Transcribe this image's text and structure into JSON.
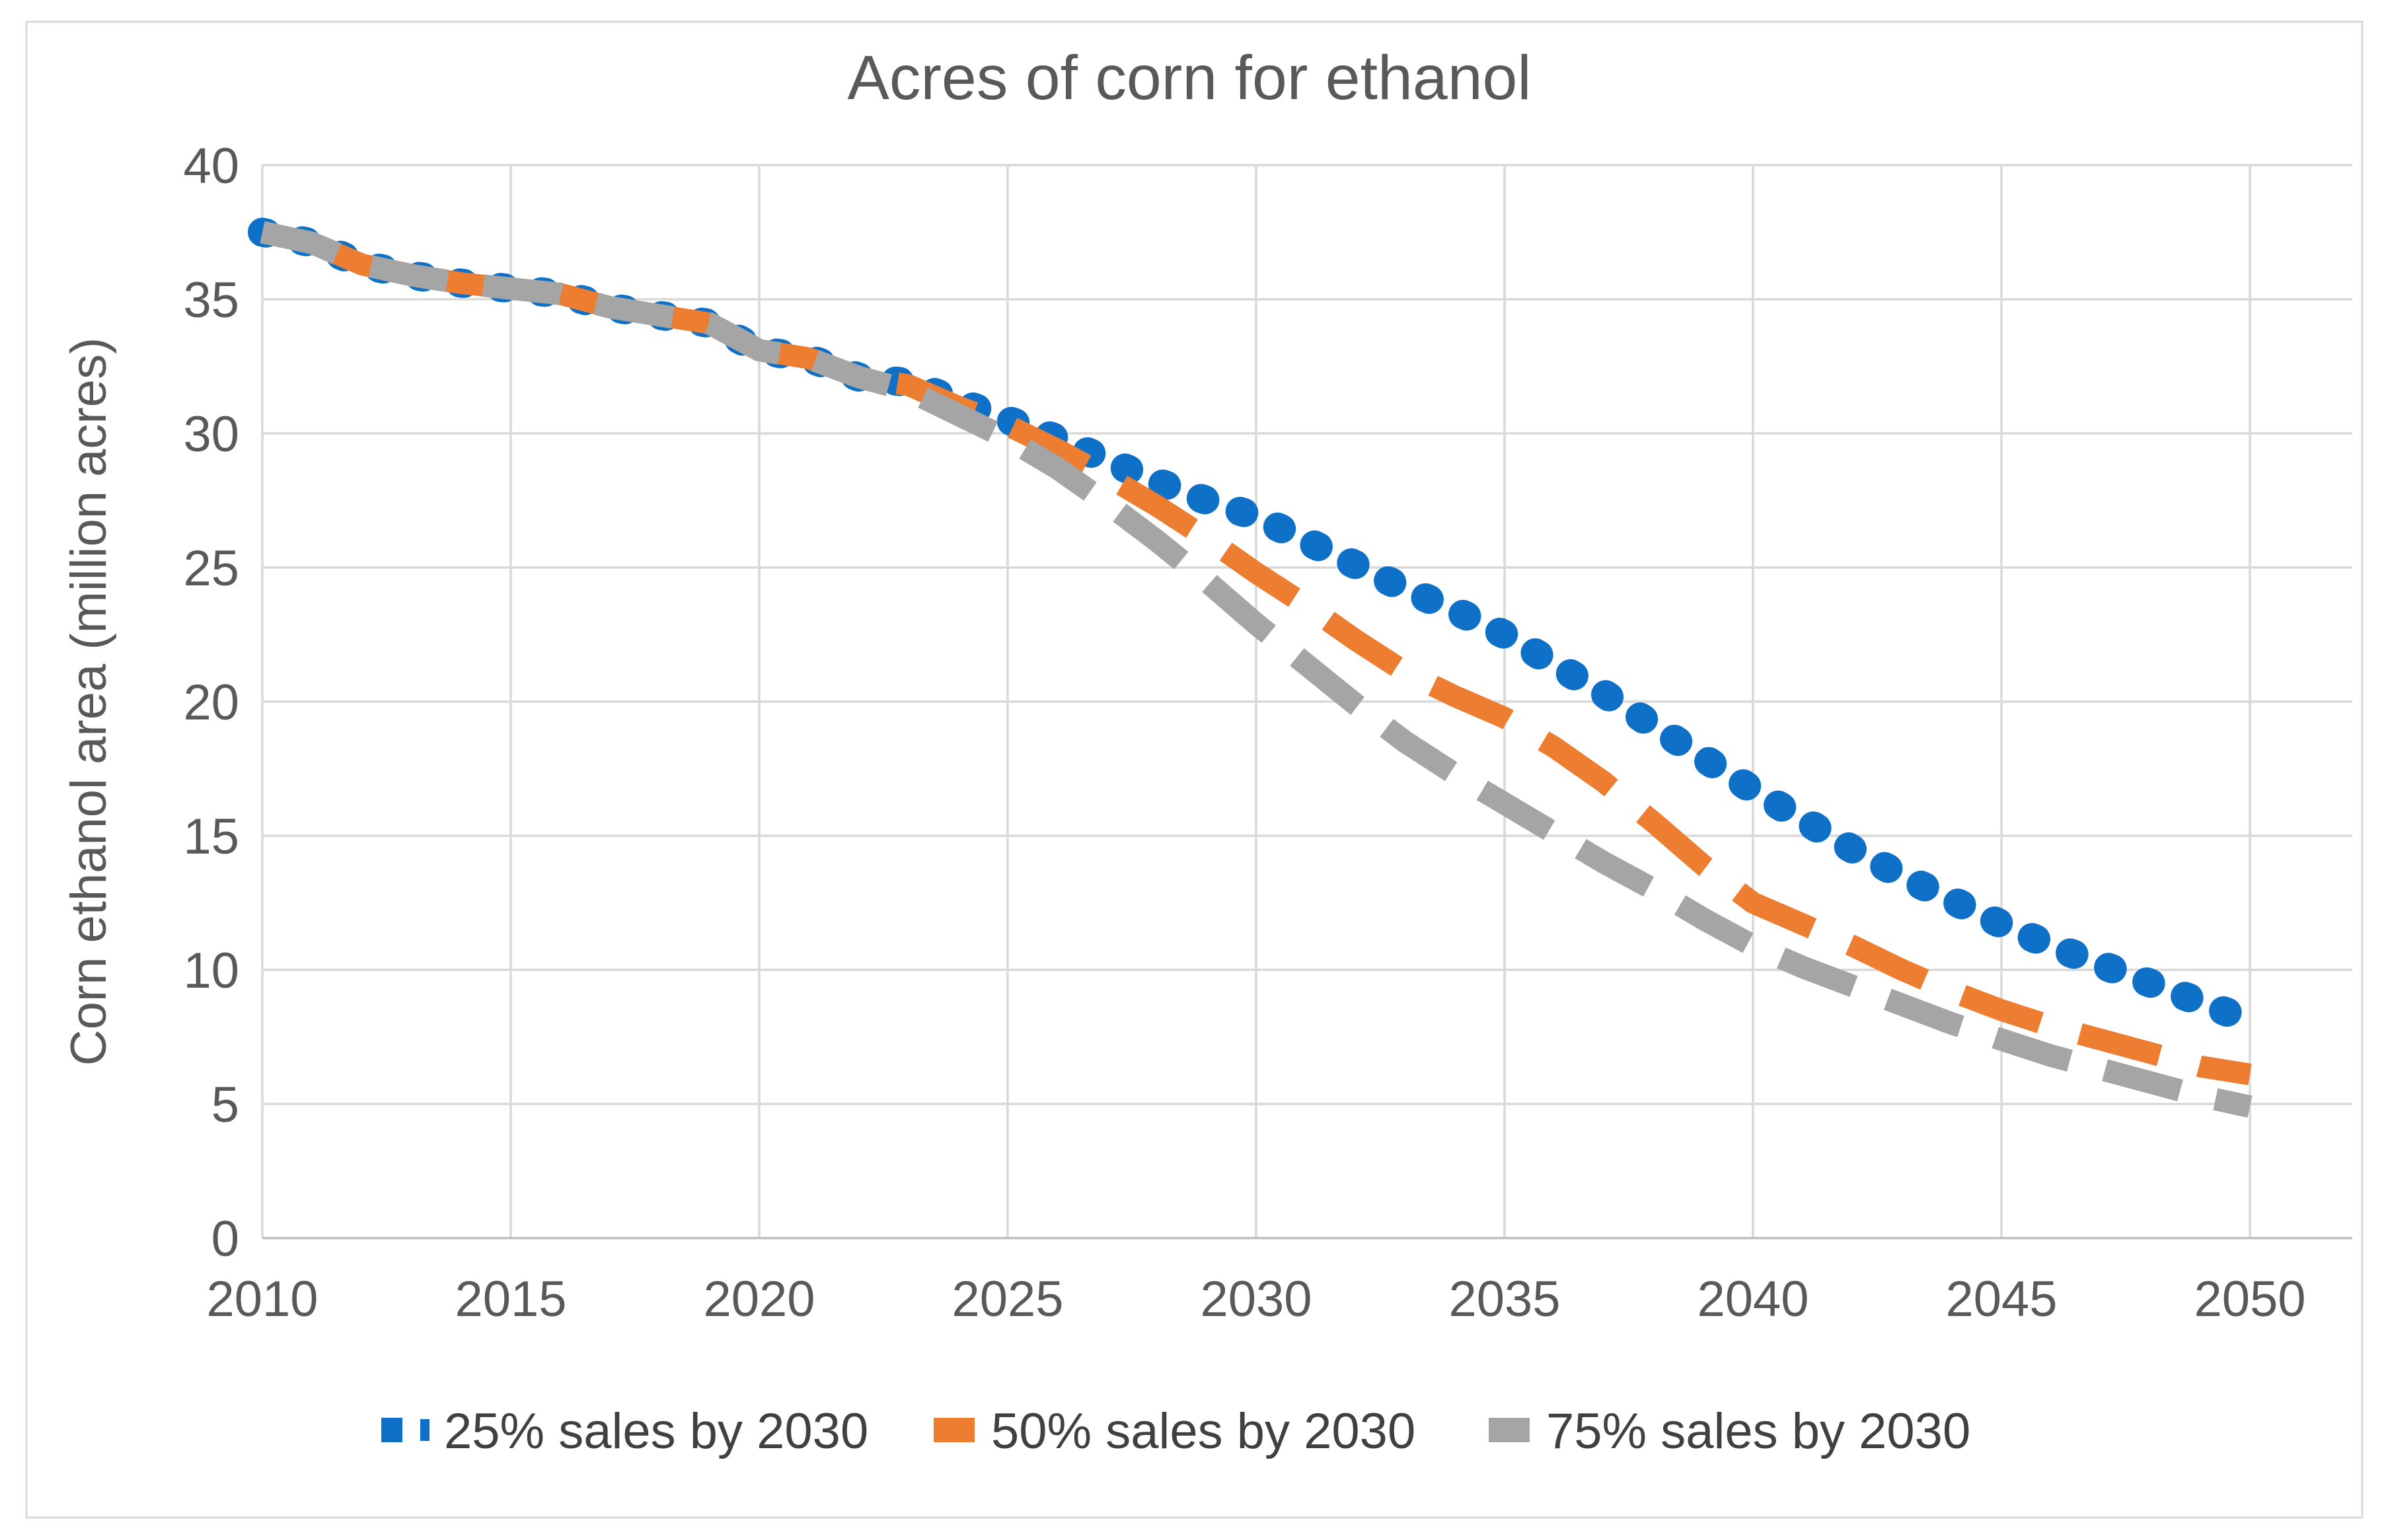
{
  "chart_data": {
    "type": "line",
    "title": "Acres of corn for ethanol",
    "xlabel": "",
    "ylabel": "Corn ethanol area (million acres)",
    "xlim": [
      2010,
      2050
    ],
    "ylim": [
      0,
      40
    ],
    "grid": true,
    "legend_position": "bottom",
    "x_ticks": [
      "2010",
      "2015",
      "2020",
      "2025",
      "2030",
      "2035",
      "2040",
      "2045",
      "2050"
    ],
    "y_ticks": [
      "0",
      "5",
      "10",
      "15",
      "20",
      "25",
      "30",
      "35",
      "40"
    ],
    "x": [
      2010,
      2011,
      2012,
      2013,
      2014,
      2015,
      2016,
      2017,
      2018,
      2019,
      2020,
      2021,
      2022,
      2023,
      2024,
      2025,
      2026,
      2027,
      2028,
      2029,
      2030,
      2031,
      2032,
      2033,
      2034,
      2035,
      2036,
      2037,
      2038,
      2039,
      2040,
      2041,
      2042,
      2043,
      2044,
      2045,
      2046,
      2047,
      2048,
      2049,
      2050
    ],
    "series": [
      {
        "name": "25% sales by 2030",
        "color": "#0F70C8",
        "dash_style": "dotted",
        "values": [
          37.5,
          37.1,
          36.3,
          35.9,
          35.6,
          35.4,
          35.2,
          34.7,
          34.4,
          34.1,
          33.1,
          32.8,
          32.1,
          31.9,
          31.2,
          30.5,
          29.8,
          29.0,
          28.2,
          27.5,
          26.9,
          26.0,
          25.1,
          24.2,
          23.4,
          22.5,
          21.4,
          20.3,
          19.1,
          17.9,
          16.7,
          15.6,
          14.5,
          13.5,
          12.6,
          11.7,
          10.9,
          10.2,
          9.5,
          8.8,
          8.1
        ]
      },
      {
        "name": "50% sales by 2030",
        "color": "#ED7D31",
        "dash_style": "dashed",
        "values": [
          37.5,
          37.1,
          36.3,
          35.9,
          35.6,
          35.4,
          35.2,
          34.7,
          34.4,
          34.1,
          33.1,
          32.8,
          32.1,
          31.8,
          31.0,
          30.3,
          29.4,
          28.4,
          27.3,
          26.1,
          24.8,
          23.6,
          22.3,
          21.1,
          20.2,
          19.4,
          18.3,
          17.0,
          15.5,
          13.9,
          12.5,
          11.7,
          10.9,
          10.0,
          9.2,
          8.5,
          7.9,
          7.4,
          6.9,
          6.4,
          6.1
        ]
      },
      {
        "name": "75% sales by 2030",
        "color": "#A5A5A5",
        "dash_style": "dashed",
        "values": [
          37.5,
          37.1,
          36.3,
          35.9,
          35.6,
          35.4,
          35.2,
          34.7,
          34.4,
          34.1,
          33.1,
          32.8,
          32.1,
          31.6,
          30.7,
          29.8,
          28.7,
          27.4,
          26.0,
          24.5,
          22.9,
          21.4,
          19.9,
          18.5,
          17.3,
          16.2,
          15.1,
          14.0,
          13.0,
          11.9,
          10.9,
          10.1,
          9.4,
          8.7,
          8.0,
          7.4,
          6.8,
          6.3,
          5.8,
          5.3,
          4.9
        ]
      }
    ]
  },
  "colors": {
    "grid": "#D9D9D9",
    "axis_line": "#BFBFBF",
    "chart_border": "#D9D9D9",
    "title_text": "#595959",
    "tick_text": "#595959",
    "legend_text": "#404040",
    "background": "#FFFFFF"
  }
}
